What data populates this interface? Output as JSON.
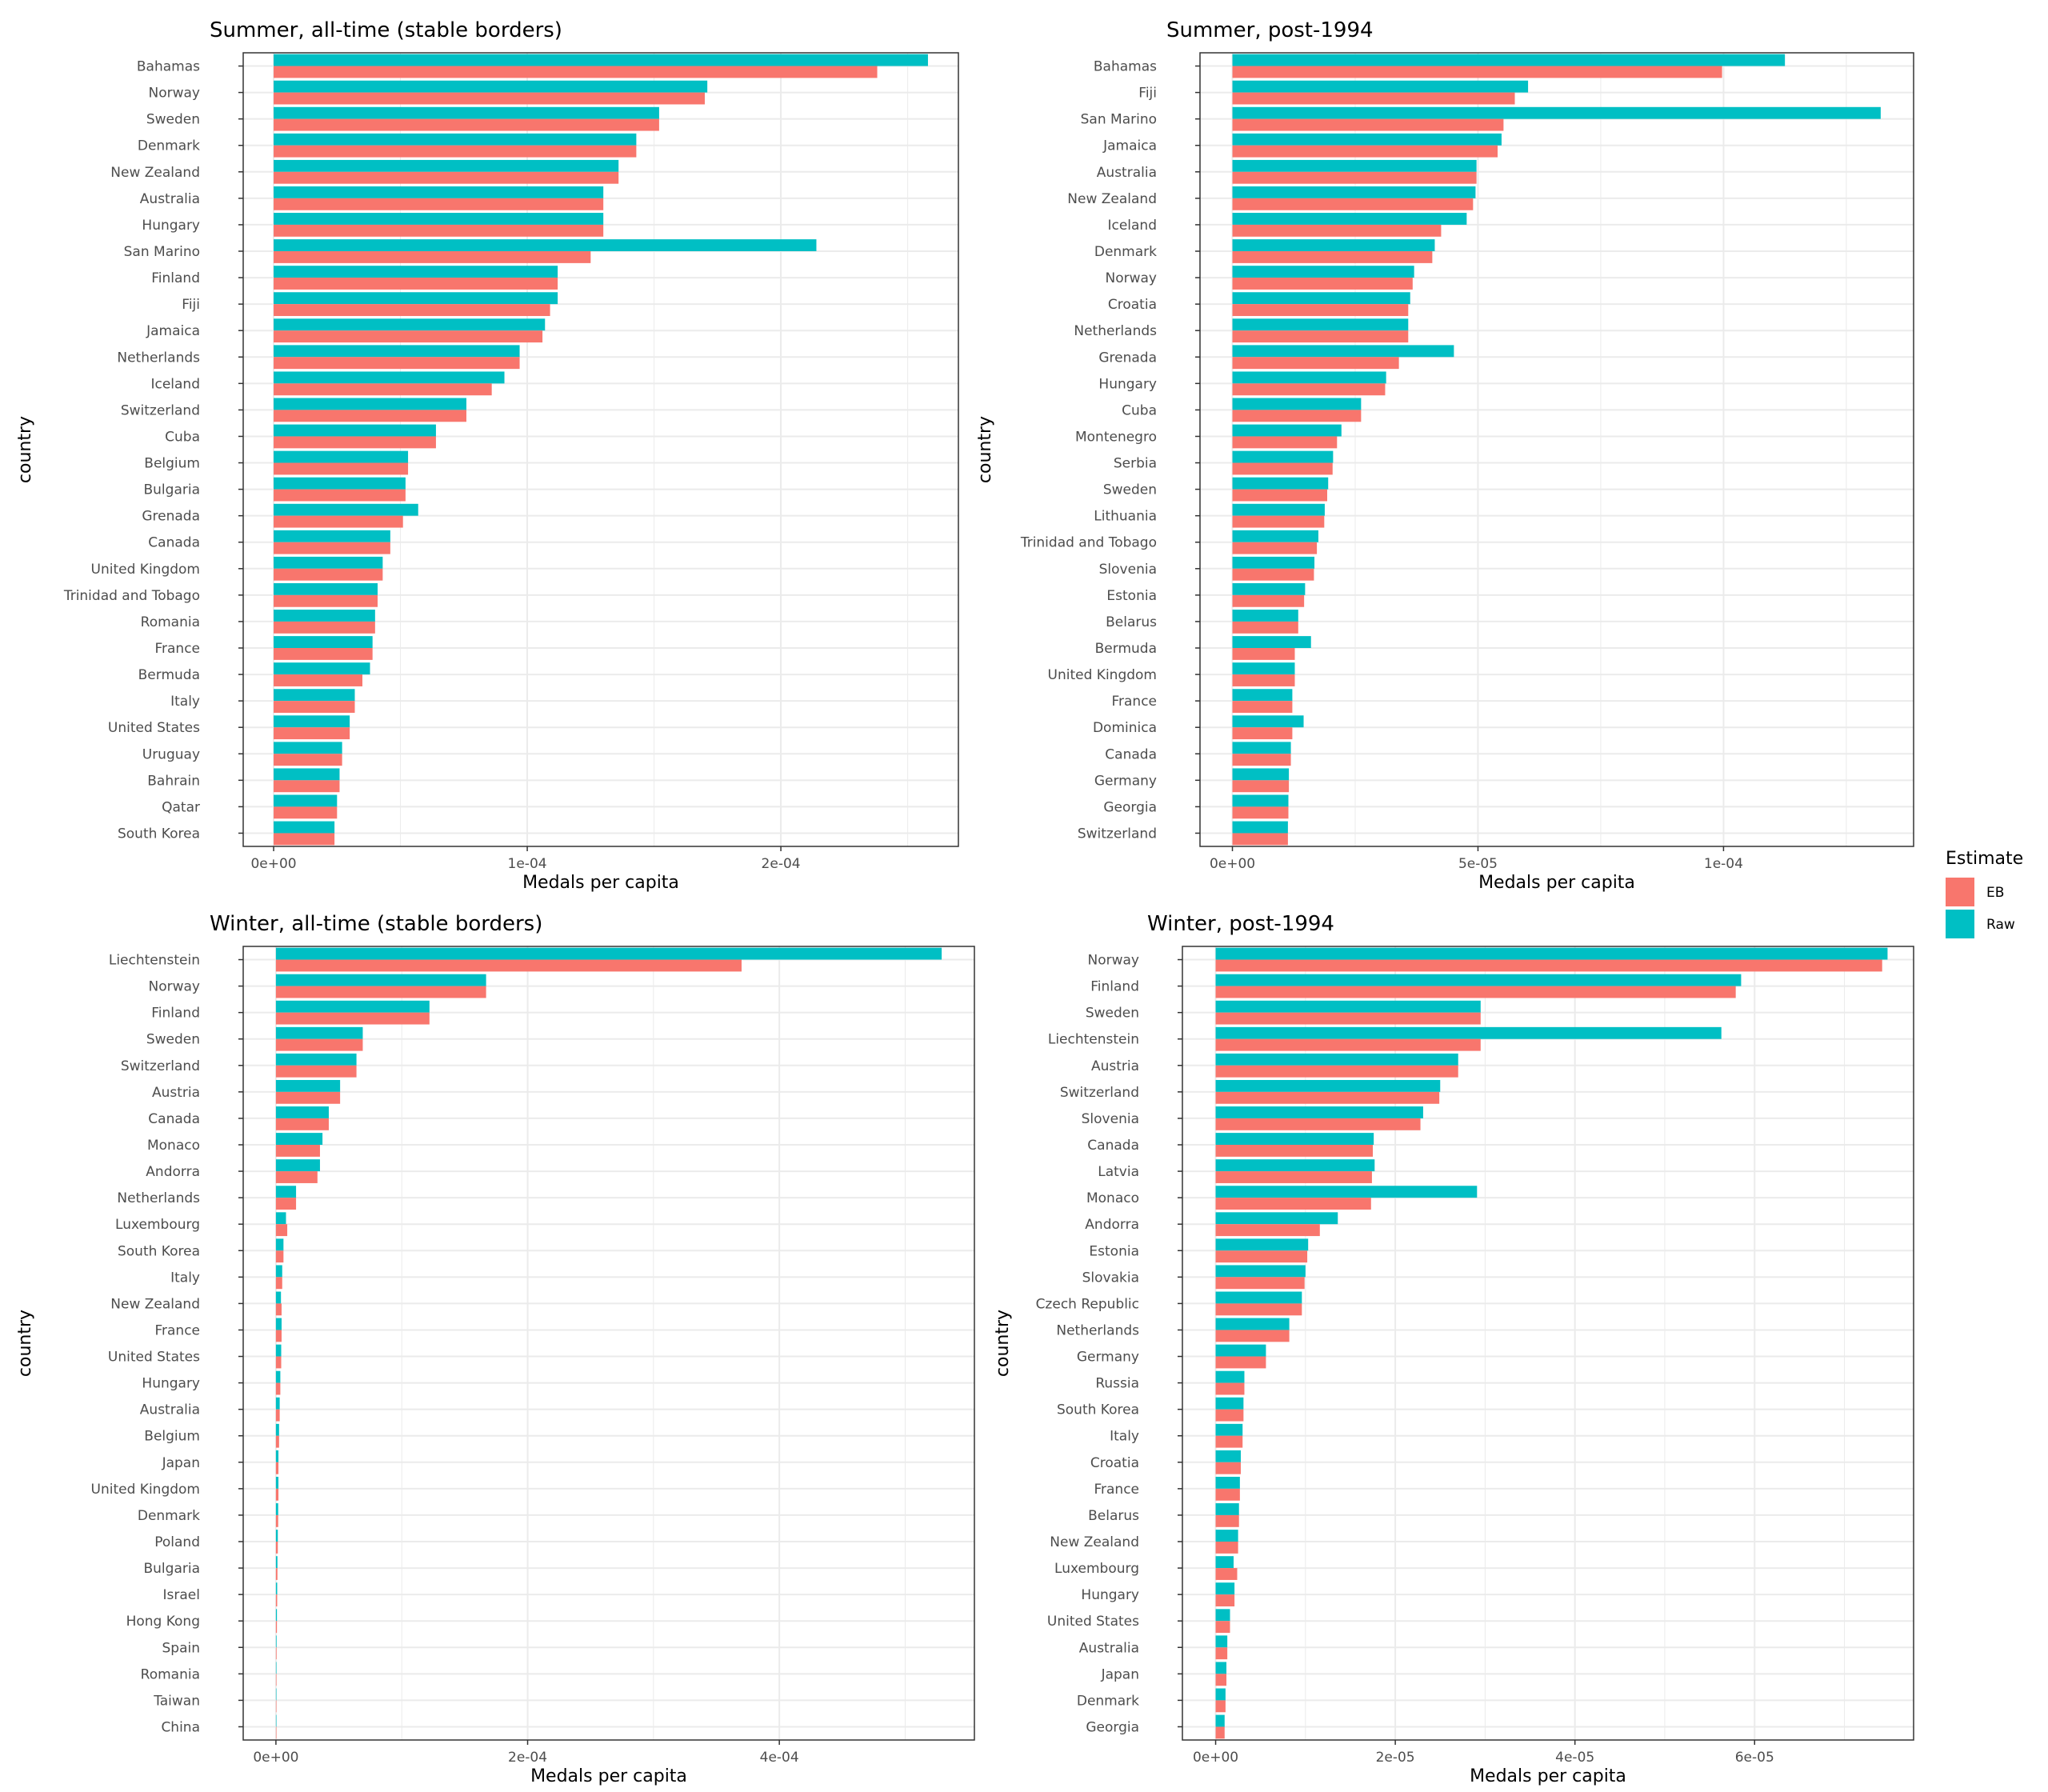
{
  "colors": {
    "eb": "#F8766D",
    "raw": "#00BFC4",
    "grid": "#ebebeb",
    "border": "#333333"
  },
  "legend": {
    "title": "Estimate",
    "items": [
      {
        "key": "eb",
        "label": "EB"
      },
      {
        "key": "raw",
        "label": "Raw"
      }
    ]
  },
  "chart_data": [
    {
      "type": "bar",
      "orientation": "horizontal",
      "title": "Summer, all-time (stable borders)",
      "xlabel": "Medals per capita",
      "ylabel": "country",
      "xlim": [
        -1.2e-05,
        0.00027
      ],
      "xticks": [
        0,
        0.0001,
        0.0002
      ],
      "xtick_labels": [
        "0e+00",
        "1e-04",
        "2e-04"
      ],
      "categories": [
        "Bahamas",
        "Norway",
        "Sweden",
        "Denmark",
        "New Zealand",
        "Australia",
        "Hungary",
        "San Marino",
        "Finland",
        "Fiji",
        "Jamaica",
        "Netherlands",
        "Iceland",
        "Switzerland",
        "Cuba",
        "Belgium",
        "Bulgaria",
        "Grenada",
        "Canada",
        "United Kingdom",
        "Trinidad and Tobago",
        "Romania",
        "France",
        "Bermuda",
        "Italy",
        "United States",
        "Uruguay",
        "Bahrain",
        "Qatar",
        "South Korea"
      ],
      "series": [
        {
          "name": "Raw",
          "values": [
            0.000258,
            0.000171,
            0.000152,
            0.000143,
            0.000136,
            0.00013,
            0.00013,
            0.000214,
            0.000112,
            0.000112,
            0.000107,
            9.7e-05,
            9.1e-05,
            7.6e-05,
            6.4e-05,
            5.3e-05,
            5.2e-05,
            5.7e-05,
            4.6e-05,
            4.3e-05,
            4.1e-05,
            4e-05,
            3.9e-05,
            3.8e-05,
            3.2e-05,
            3e-05,
            2.7e-05,
            2.6e-05,
            2.5e-05,
            2.4e-05
          ]
        },
        {
          "name": "EB",
          "values": [
            0.000238,
            0.00017,
            0.000152,
            0.000143,
            0.000136,
            0.00013,
            0.00013,
            0.000125,
            0.000112,
            0.000109,
            0.000106,
            9.7e-05,
            8.6e-05,
            7.6e-05,
            6.4e-05,
            5.3e-05,
            5.2e-05,
            5.1e-05,
            4.6e-05,
            4.3e-05,
            4.1e-05,
            4e-05,
            3.9e-05,
            3.5e-05,
            3.2e-05,
            3e-05,
            2.7e-05,
            2.6e-05,
            2.5e-05,
            2.4e-05
          ]
        }
      ]
    },
    {
      "type": "bar",
      "orientation": "horizontal",
      "title": "Summer, post-1994",
      "xlabel": "Medals per capita",
      "ylabel": "country",
      "xlim": [
        -6.6e-06,
        0.0001387
      ],
      "xticks": [
        0,
        5e-05,
        0.0001
      ],
      "xtick_labels": [
        "0e+00",
        "5e-05",
        "1e-04"
      ],
      "categories": [
        "Bahamas",
        "Fiji",
        "San Marino",
        "Jamaica",
        "Australia",
        "New Zealand",
        "Iceland",
        "Denmark",
        "Norway",
        "Croatia",
        "Netherlands",
        "Grenada",
        "Hungary",
        "Cuba",
        "Montenegro",
        "Serbia",
        "Sweden",
        "Lithuania",
        "Trinidad and Tobago",
        "Slovenia",
        "Estonia",
        "Belarus",
        "Bermuda",
        "United Kingdom",
        "France",
        "Dominica",
        "Canada",
        "Germany",
        "Georgia",
        "Switzerland"
      ],
      "series": [
        {
          "name": "Raw",
          "values": [
            0.0001125,
            6.02e-05,
            0.000132,
            5.48e-05,
            4.97e-05,
            4.95e-05,
            4.77e-05,
            4.12e-05,
            3.7e-05,
            3.62e-05,
            3.58e-05,
            4.51e-05,
            3.13e-05,
            2.62e-05,
            2.22e-05,
            2.05e-05,
            1.95e-05,
            1.88e-05,
            1.75e-05,
            1.67e-05,
            1.48e-05,
            1.34e-05,
            1.6e-05,
            1.27e-05,
            1.22e-05,
            1.45e-05,
            1.19e-05,
            1.15e-05,
            1.14e-05,
            1.13e-05
          ]
        },
        {
          "name": "EB",
          "values": [
            9.97e-05,
            5.75e-05,
            5.52e-05,
            5.4e-05,
            4.97e-05,
            4.9e-05,
            4.25e-05,
            4.07e-05,
            3.67e-05,
            3.58e-05,
            3.58e-05,
            3.39e-05,
            3.11e-05,
            2.62e-05,
            2.13e-05,
            2.04e-05,
            1.93e-05,
            1.87e-05,
            1.72e-05,
            1.66e-05,
            1.46e-05,
            1.34e-05,
            1.27e-05,
            1.27e-05,
            1.22e-05,
            1.22e-05,
            1.19e-05,
            1.15e-05,
            1.14e-05,
            1.13e-05
          ]
        }
      ]
    },
    {
      "type": "bar",
      "orientation": "horizontal",
      "title": "Winter, all-time (stable borders)",
      "xlabel": "Medals per capita",
      "ylabel": "country",
      "xlim": [
        -2.6e-05,
        0.000555
      ],
      "xticks": [
        0,
        0.0002,
        0.0004
      ],
      "xtick_labels": [
        "0e+00",
        "2e-04",
        "4e-04"
      ],
      "categories": [
        "Liechtenstein",
        "Norway",
        "Finland",
        "Sweden",
        "Switzerland",
        "Austria",
        "Canada",
        "Monaco",
        "Andorra",
        "Netherlands",
        "Luxembourg",
        "South Korea",
        "Italy",
        "New Zealand",
        "France",
        "United States",
        "Hungary",
        "Australia",
        "Belgium",
        "Japan",
        "United Kingdom",
        "Denmark",
        "Poland",
        "Bulgaria",
        "Israel",
        "Hong Kong",
        "Spain",
        "Romania",
        "Taiwan",
        "China"
      ],
      "series": [
        {
          "name": "Raw",
          "values": [
            0.000529,
            0.000167,
            0.000122,
            6.9e-05,
            6.4e-05,
            5.1e-05,
            4.2e-05,
            3.7e-05,
            3.5e-05,
            1.6e-05,
            8e-06,
            6e-06,
            5e-06,
            4e-06,
            4.5e-06,
            4.2e-06,
            3.5e-06,
            3e-06,
            2.5e-06,
            2e-06,
            2e-06,
            1.8e-06,
            1.5e-06,
            1.2e-06,
            1e-06,
            8e-07,
            5e-07,
            4e-07,
            3e-07,
            2e-07
          ]
        },
        {
          "name": "EB",
          "values": [
            0.00037,
            0.000167,
            0.000122,
            6.9e-05,
            6.4e-05,
            5.1e-05,
            4.2e-05,
            3.5e-05,
            3.3e-05,
            1.6e-05,
            9e-06,
            6e-06,
            5e-06,
            4.5e-06,
            4.5e-06,
            4.2e-06,
            3.5e-06,
            3e-06,
            2.5e-06,
            2e-06,
            2e-06,
            1.8e-06,
            1.5e-06,
            1.2e-06,
            1e-06,
            8e-07,
            5e-07,
            4e-07,
            3e-07,
            2e-07
          ]
        }
      ]
    },
    {
      "type": "bar",
      "orientation": "horizontal",
      "title": "Winter, post-1994",
      "xlabel": "Medals per capita",
      "ylabel": "country",
      "xlim": [
        -3.7e-06,
        7.77e-05
      ],
      "xticks": [
        0,
        2e-05,
        4e-05,
        6e-05
      ],
      "xtick_labels": [
        "0e+00",
        "2e-05",
        "4e-05",
        "6e-05"
      ],
      "categories": [
        "Norway",
        "Finland",
        "Sweden",
        "Liechtenstein",
        "Austria",
        "Switzerland",
        "Slovenia",
        "Canada",
        "Latvia",
        "Monaco",
        "Andorra",
        "Estonia",
        "Slovakia",
        "Czech Republic",
        "Netherlands",
        "Germany",
        "Russia",
        "South Korea",
        "Italy",
        "Croatia",
        "France",
        "Belarus",
        "New Zealand",
        "Luxembourg",
        "Hungary",
        "United States",
        "Australia",
        "Japan",
        "Denmark",
        "Georgia"
      ],
      "series": [
        {
          "name": "Raw",
          "values": [
            7.48e-05,
            5.85e-05,
            2.95e-05,
            5.63e-05,
            2.7e-05,
            2.5e-05,
            2.31e-05,
            1.76e-05,
            1.77e-05,
            2.91e-05,
            1.36e-05,
            1.03e-05,
            1e-05,
            9.6e-06,
            8.2e-06,
            5.6e-06,
            3.2e-06,
            3.1e-06,
            3e-06,
            2.8e-06,
            2.7e-06,
            2.6e-06,
            2.5e-06,
            2e-06,
            2.1e-06,
            1.6e-06,
            1.3e-06,
            1.2e-06,
            1.1e-06,
            1e-06
          ]
        },
        {
          "name": "EB",
          "values": [
            7.42e-05,
            5.79e-05,
            2.95e-05,
            2.95e-05,
            2.7e-05,
            2.49e-05,
            2.28e-05,
            1.75e-05,
            1.74e-05,
            1.73e-05,
            1.16e-05,
            1.02e-05,
            9.9e-06,
            9.6e-06,
            8.2e-06,
            5.6e-06,
            3.2e-06,
            3.1e-06,
            3e-06,
            2.8e-06,
            2.7e-06,
            2.6e-06,
            2.5e-06,
            2.4e-06,
            2.1e-06,
            1.6e-06,
            1.3e-06,
            1.2e-06,
            1.1e-06,
            1e-06
          ]
        }
      ]
    }
  ]
}
